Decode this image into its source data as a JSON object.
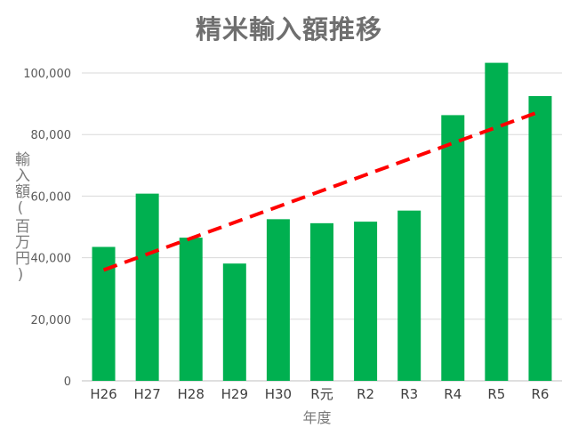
{
  "chart_data": {
    "type": "bar",
    "title": "精米輸入額推移",
    "xlabel": "年度",
    "ylabel": "輸入額(百万円)",
    "categories": [
      "H26",
      "H27",
      "H28",
      "H29",
      "H30",
      "R元",
      "R2",
      "R3",
      "R4",
      "R5",
      "R6"
    ],
    "values": [
      43500,
      60800,
      46500,
      38100,
      52500,
      51200,
      51700,
      55300,
      86300,
      103300,
      92500
    ],
    "ylim": [
      0,
      100000
    ],
    "yticks": [
      0,
      20000,
      40000,
      60000,
      80000,
      100000
    ],
    "ytick_labels": [
      "0",
      "20,000",
      "40,000",
      "60,000",
      "80,000",
      "100,000"
    ],
    "trendline": {
      "type": "linear",
      "start": 36000,
      "end": 87500,
      "style": "dashed"
    },
    "grid": true,
    "legend": "none",
    "colors": {
      "bar": "#00b050",
      "trend": "#ff0000",
      "grid": "#d9d9d9",
      "text": "#595959"
    }
  }
}
